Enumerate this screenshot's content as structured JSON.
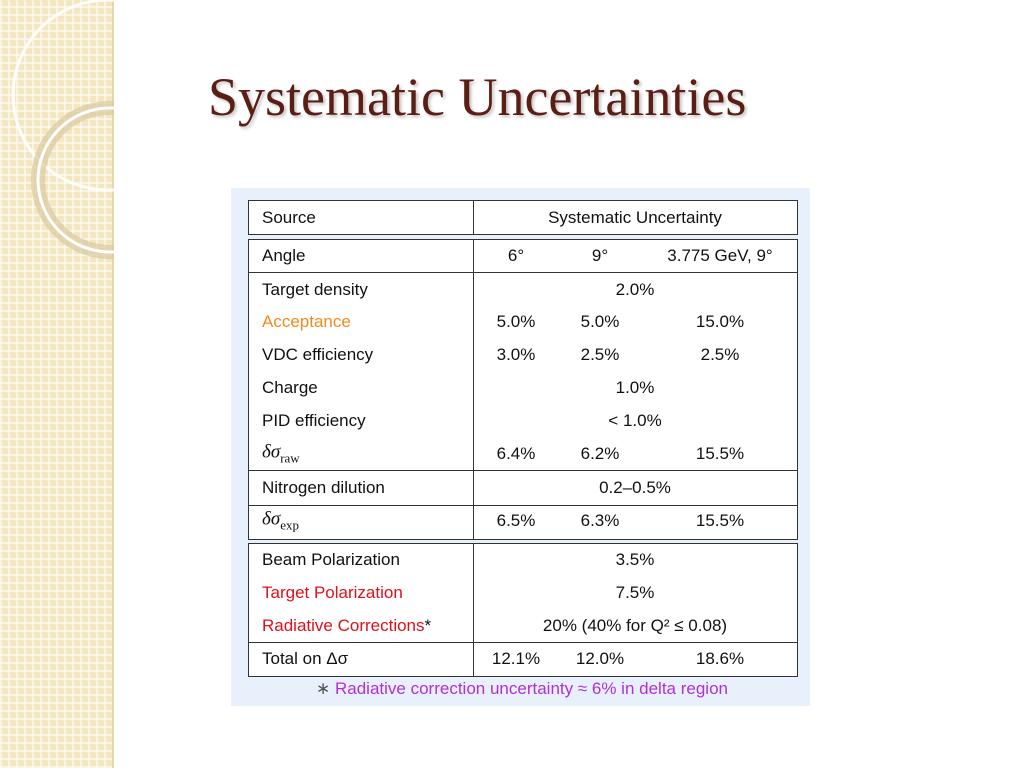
{
  "title": "Systematic Uncertainties",
  "table": {
    "header": [
      "Source",
      "Systematic Uncertainty"
    ],
    "rows": [
      {
        "label": "Angle",
        "values": [
          "6°",
          "9°",
          "3.775 GeV, 9°"
        ]
      },
      {
        "label": "Target density",
        "values": [
          "2.0%"
        ]
      },
      {
        "label": "Acceptance",
        "color": "#f28a1e",
        "values": [
          "5.0%",
          "5.0%",
          "15.0%"
        ]
      },
      {
        "label": "VDC efficiency",
        "values": [
          "3.0%",
          "2.5%",
          "2.5%"
        ]
      },
      {
        "label": "Charge",
        "values": [
          "1.0%"
        ]
      },
      {
        "label": "PID efficiency",
        "values": [
          "< 1.0%"
        ]
      },
      {
        "label": "δσ",
        "sub": "raw",
        "values": [
          "6.4%",
          "6.2%",
          "15.5%"
        ]
      },
      {
        "label": "Nitrogen dilution",
        "values": [
          "0.2–0.5%"
        ]
      },
      {
        "label": "δσ",
        "sub": "exp",
        "values": [
          "6.5%",
          "6.3%",
          "15.5%"
        ]
      },
      {
        "label": "Beam Polarization",
        "values": [
          "3.5%"
        ]
      },
      {
        "label": "Target Polarization",
        "color": "#e0101a",
        "values": [
          "7.5%"
        ]
      },
      {
        "label": "Radiative Corrections",
        "color": "#e0101a",
        "marker": "*",
        "values": [
          "20% (40% for Q² ≤ 0.08)"
        ]
      },
      {
        "label": "Total on Δσ",
        "values": [
          "12.1%",
          "12.0%",
          "18.6%"
        ]
      }
    ],
    "footnote": {
      "marker": "∗",
      "text": "Radiative correction uncertainty ≈ 6% in delta region",
      "color": "#b030d8"
    }
  }
}
